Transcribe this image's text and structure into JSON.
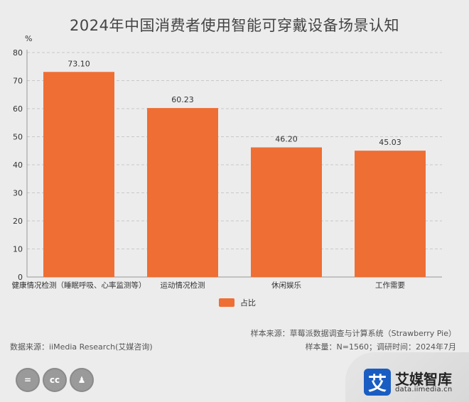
{
  "title": "2024年中国消费者使用智能可穿戴设备场景认知",
  "chart_data": {
    "type": "bar",
    "title": "2024年中国消费者使用智能可穿戴设备场景认知",
    "ylabel": "%",
    "ylim": [
      0,
      80
    ],
    "yticks": [
      0,
      10,
      20,
      30,
      40,
      50,
      60,
      70,
      80
    ],
    "grid": true,
    "categories": [
      "健康情况检测（睡眠呼吸、心率监测等）",
      "运动情况检测",
      "休闲娱乐",
      "工作需要"
    ],
    "series": [
      {
        "name": "占比",
        "values": [
          73.1,
          60.23,
          46.2,
          45.03
        ],
        "labels": [
          "73.10",
          "60.23",
          "46.20",
          "45.03"
        ]
      }
    ],
    "legend": "bottom-center"
  },
  "colors": {
    "bar": "#ef6e34",
    "grid": "#c8c8c8",
    "axis": "#999999",
    "background": "#ececec"
  },
  "source": {
    "data_source": "数据来源：iiMedia Research(艾媒咨询)",
    "sample_source": "样本来源：草莓派数据调查与计算系统（Strawberry Pie）",
    "sample_info": "样本量：N=1560；调研时间：2024年7月"
  },
  "brand": {
    "name": "艾媒智库",
    "url": "data.iimedia.cn",
    "mark": "艾"
  },
  "license_icons": [
    "equals-icon",
    "cc-icon",
    "person-icon"
  ],
  "license_glyphs": [
    "=",
    "cc",
    "♟"
  ]
}
